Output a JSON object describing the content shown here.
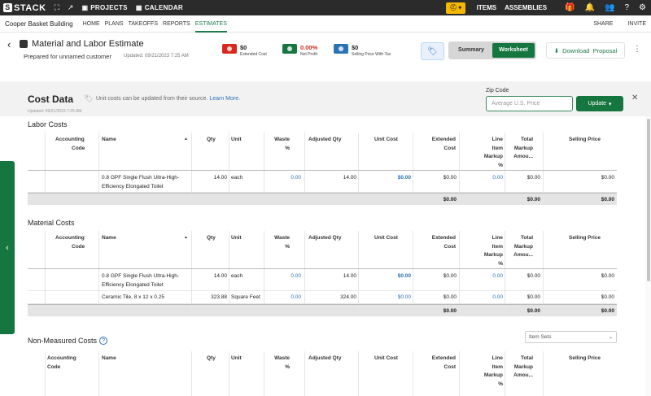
{
  "topbar": {
    "logo_letter": "S",
    "logo_text": "STACK",
    "projects_label": "PROJECTS",
    "calendar_label": "CALENDAR",
    "items_label": "ITEMS",
    "assemblies_label": "ASSEMBLIES"
  },
  "subnav": {
    "project_name": "Cooper Basket Building",
    "tabs": [
      "HOME",
      "PLANS",
      "TAKEOFFS",
      "REPORTS",
      "ESTIMATES"
    ],
    "active_tab": "ESTIMATES",
    "share_label": "SHARE",
    "invite_label": "INVITE"
  },
  "header": {
    "title": "Material and Labor Estimate",
    "prepared_for": "Prepared for unnamed customer",
    "updated": "Updated: 09/21/2023 7:25 AM",
    "stats": [
      {
        "value": "$0",
        "label": "Extended Cost",
        "color": "#d9281e"
      },
      {
        "value": "0.00%",
        "label": "Net Profit",
        "color": "#16763f"
      },
      {
        "value": "$0",
        "label": "Selling Price With Tax",
        "color": "#2b72b8"
      }
    ],
    "net_profit_color": "#d9281e",
    "seg_summary": "Summary",
    "seg_worksheet": "Worksheet",
    "download_label": "Download  Proposal"
  },
  "cost_data": {
    "title": "Cost Data",
    "note": "Unit costs can be updated from their source.",
    "learn_more": "Learn More.",
    "updated": "Updated: 09/21/2023 7:25 AM",
    "zip_label": "Zip Code",
    "zip_placeholder": "Average U.S. Price",
    "update_label": "Update"
  },
  "columns": {
    "accounting_code": [
      "Accounting",
      "Code"
    ],
    "name": "Name",
    "qty": "Qty",
    "unit": "Unit",
    "waste": [
      "Waste",
      "%"
    ],
    "adjusted_qty": "Adjusted Qty",
    "unit_cost": "Unit Cost",
    "extended_cost": [
      "Extended",
      "Cost"
    ],
    "line_item_markup": [
      "Line",
      "Item",
      "Markup",
      "%"
    ],
    "total_markup": [
      "Total",
      "Markup",
      "Amou..."
    ],
    "selling_price": "Selling Price"
  },
  "labor": {
    "title": "Labor Costs",
    "rows": [
      {
        "name": [
          "0.8 GPF Single Flush Ultra-High-",
          "Efficiency Elongated Toilet"
        ],
        "qty": "14.00",
        "unit": "each",
        "waste": "0.00",
        "adjusted_qty": "14.00",
        "unit_cost": "$0.00",
        "extended_cost": "$0.00",
        "markup": "0.00",
        "total_markup": "$0.00",
        "selling_price": "$0.00"
      }
    ],
    "totals": {
      "extended_cost": "$0.00",
      "total_markup": "$0.00",
      "selling_price": "$0.00"
    }
  },
  "material": {
    "title": "Material Costs",
    "rows": [
      {
        "name": [
          "0.8 GPF Single Flush Ultra-High-",
          "Efficiency Elongated Toilet"
        ],
        "qty": "14.00",
        "unit": "each",
        "waste": "0.00",
        "adjusted_qty": "14.00",
        "unit_cost": "$0.00",
        "extended_cost": "$0.00",
        "markup": "0.00",
        "total_markup": "$0.00",
        "selling_price": "$0.00"
      },
      {
        "name": [
          "Ceramic Tile, 8 x 12 x 0.25",
          ""
        ],
        "qty": "323.88",
        "unit": "Square Feet",
        "waste": "0.00",
        "adjusted_qty": "324.00",
        "unit_cost": "$0.00",
        "extended_cost": "$0.00",
        "markup": "0.00",
        "total_markup": "$0.00",
        "selling_price": "$0.00"
      }
    ],
    "totals": {
      "extended_cost": "$0.00",
      "total_markup": "$0.00",
      "selling_price": "$0.00"
    }
  },
  "non_measured": {
    "title": "Non-Measured Costs",
    "item_sets_placeholder": "Item Sets"
  }
}
